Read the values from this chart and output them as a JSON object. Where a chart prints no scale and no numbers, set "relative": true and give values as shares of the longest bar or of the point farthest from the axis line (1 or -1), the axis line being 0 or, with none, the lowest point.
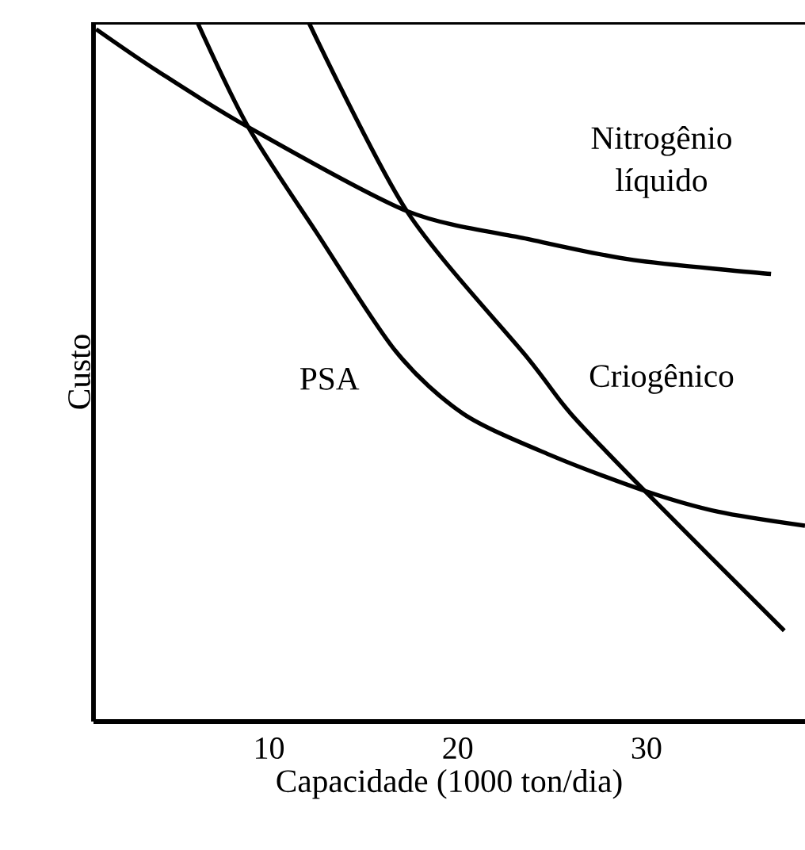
{
  "chart_data": {
    "type": "line",
    "relative": true,
    "xlabel": "Capacidade (1000 ton/dia)",
    "ylabel": "Custo",
    "xlim": [
      0.7,
      38.4
    ],
    "xticks": [
      10,
      20,
      30
    ],
    "series": [
      {
        "name": "Nitrogênio líquido",
        "color": "#000000",
        "x": [
          0.84,
          4.1,
          8.9,
          17.3,
          23.7,
          29.3,
          36.6
        ],
        "values": [
          0.99,
          0.93,
          0.85,
          0.73,
          0.69,
          0.66,
          0.64
        ]
      },
      {
        "name": "PSA",
        "color": "#000000",
        "x": [
          6.2,
          8.9,
          12.5,
          16.7,
          20.3,
          25,
          29.9,
          33.8,
          38.4
        ],
        "values": [
          1.0,
          0.85,
          0.7,
          0.53,
          0.44,
          0.38,
          0.33,
          0.3,
          0.28
        ]
      },
      {
        "name": "Criogênico",
        "color": "#000000",
        "x": [
          12.1,
          17.3,
          23.7,
          26,
          29.9,
          37.3
        ],
        "values": [
          1.0,
          0.73,
          0.52,
          0.44,
          0.33,
          0.13
        ]
      }
    ]
  }
}
